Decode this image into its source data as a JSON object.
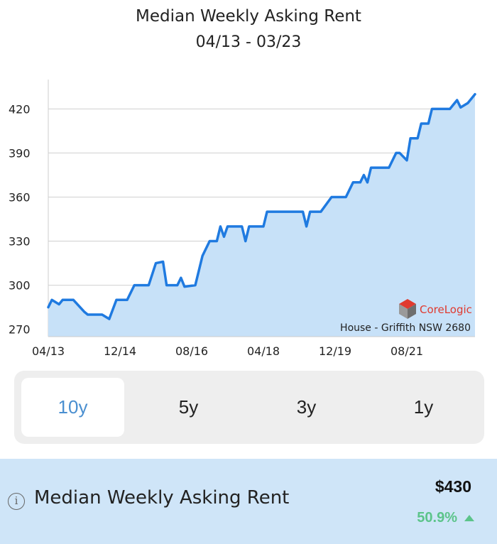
{
  "header": {
    "title": "Median Weekly Asking Rent",
    "subtitle": "04/13 - 03/23"
  },
  "chart_data": {
    "type": "area",
    "title": "Median Weekly Asking Rent",
    "subtitle": "04/13 - 03/23",
    "xlabel": "",
    "ylabel": "",
    "y_ticks": [
      270,
      300,
      330,
      360,
      390,
      420
    ],
    "ylim": [
      265,
      440
    ],
    "x_ticks": [
      "04/13",
      "12/14",
      "08/16",
      "04/18",
      "12/19",
      "08/21"
    ],
    "x_range": [
      "04/13",
      "03/23"
    ],
    "grid": "horizontal",
    "caption": "House - Griffith NSW 2680",
    "logo": "CoreLogic",
    "colors": {
      "line": "#1f7ae0",
      "fill": "#c7e1f8",
      "grid": "#d0d0d0"
    },
    "series": [
      {
        "values": [
          [
            "04/13",
            285
          ],
          [
            "05/13",
            290
          ],
          [
            "07/13",
            287
          ],
          [
            "08/13",
            290
          ],
          [
            "11/13",
            290
          ],
          [
            "02/14",
            282
          ],
          [
            "03/14",
            280
          ],
          [
            "07/14",
            280
          ],
          [
            "09/14",
            277
          ],
          [
            "11/14",
            290
          ],
          [
            "02/15",
            290
          ],
          [
            "04/15",
            300
          ],
          [
            "08/15",
            300
          ],
          [
            "10/15",
            315
          ],
          [
            "12/15",
            316
          ],
          [
            "01/16",
            300
          ],
          [
            "04/16",
            300
          ],
          [
            "05/16",
            305
          ],
          [
            "06/16",
            299
          ],
          [
            "09/16",
            300
          ],
          [
            "11/16",
            320
          ],
          [
            "01/17",
            330
          ],
          [
            "03/17",
            330
          ],
          [
            "04/17",
            340
          ],
          [
            "05/17",
            333
          ],
          [
            "06/17",
            340
          ],
          [
            "10/17",
            340
          ],
          [
            "11/17",
            330
          ],
          [
            "12/17",
            340
          ],
          [
            "04/18",
            340
          ],
          [
            "05/18",
            350
          ],
          [
            "12/18",
            350
          ],
          [
            "02/19",
            350
          ],
          [
            "03/19",
            350
          ],
          [
            "04/19",
            340
          ],
          [
            "05/19",
            350
          ],
          [
            "08/19",
            350
          ],
          [
            "11/19",
            360
          ],
          [
            "03/20",
            360
          ],
          [
            "05/20",
            370
          ],
          [
            "07/20",
            370
          ],
          [
            "08/20",
            375
          ],
          [
            "09/20",
            370
          ],
          [
            "10/20",
            380
          ],
          [
            "03/21",
            380
          ],
          [
            "05/21",
            390
          ],
          [
            "06/21",
            390
          ],
          [
            "08/21",
            385
          ],
          [
            "09/21",
            400
          ],
          [
            "11/21",
            400
          ],
          [
            "12/21",
            410
          ],
          [
            "02/22",
            410
          ],
          [
            "03/22",
            420
          ],
          [
            "06/22",
            420
          ],
          [
            "08/22",
            420
          ],
          [
            "10/22",
            426
          ],
          [
            "11/22",
            421
          ],
          [
            "01/23",
            424
          ],
          [
            "03/23",
            430
          ]
        ]
      }
    ]
  },
  "range_selector": {
    "options": [
      "10y",
      "5y",
      "3y",
      "1y"
    ],
    "selected": "10y"
  },
  "summary": {
    "label": "Median Weekly Asking Rent",
    "value": "$430",
    "change": "50.9%",
    "change_direction": "up",
    "change_color": "#5cc48a"
  }
}
